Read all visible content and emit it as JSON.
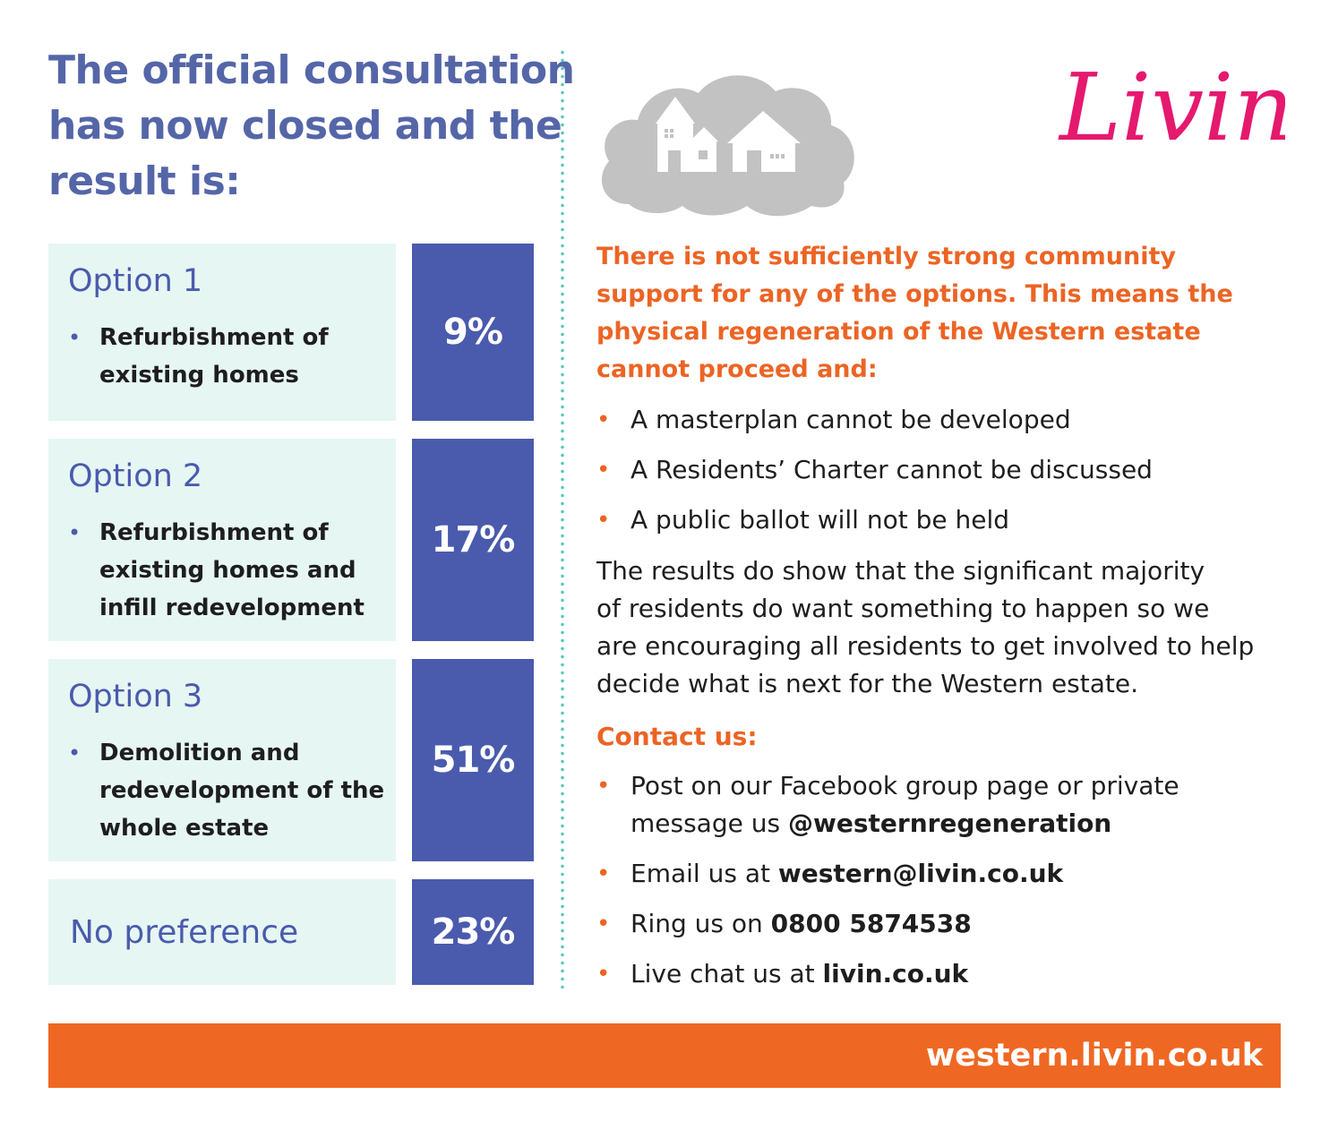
{
  "headline": {
    "lines": [
      "The official consultation",
      "has now closed and the",
      "result is:"
    ]
  },
  "options": [
    {
      "title": "Option 1",
      "desc_lines": [
        "Refurbishment of",
        "existing homes"
      ],
      "percent_label": "9%",
      "percent": 9
    },
    {
      "title": "Option 2",
      "desc_lines": [
        "Refurbishment of",
        "existing homes and",
        "infill redevelopment"
      ],
      "percent_label": "17%",
      "percent": 17
    },
    {
      "title": "Option 3",
      "desc_lines": [
        "Demolition and",
        "redevelopment of the",
        "whole estate"
      ],
      "percent_label": "51%",
      "percent": 51
    },
    {
      "title": "No preference",
      "desc_lines": [],
      "percent_label": "23%",
      "percent": 23
    }
  ],
  "logo_text": "Livin",
  "lead_lines": [
    "There is not sufficiently strong community",
    "support for any of the options. This means the",
    "physical regeneration of the Western estate",
    "cannot proceed and:"
  ],
  "consequences": [
    "A masterplan cannot be developed",
    "A Residents’ Charter cannot be discussed",
    "A public ballot will not be held"
  ],
  "paragraph_lines": [
    "The results do show that the significant majority",
    "of residents do want something to happen so we",
    "are encouraging all residents to get involved to help",
    "decide what is next for the Western estate."
  ],
  "contact": {
    "heading": "Contact us:",
    "facebook_line1": "Post on our Facebook group page or private",
    "facebook_line2_prefix": "message us ",
    "facebook_handle": "@westernregeneration",
    "email_prefix": "Email us at ",
    "email": "western@livin.co.uk",
    "phone_prefix": "Ring us on ",
    "phone": "0800 5874538",
    "chat_prefix": "Live chat us at ",
    "chat_site": "livin.co.uk"
  },
  "footer_url": "western.livin.co.uk",
  "colors": {
    "navy": "#4a5bad",
    "orange": "#ec6424",
    "mint": "#e6f6f3",
    "teal": "#5ec4be",
    "logo_pink": "#e5196e"
  },
  "icons": [
    "cloud-houses-icon",
    "bullet-dot-icon"
  ]
}
